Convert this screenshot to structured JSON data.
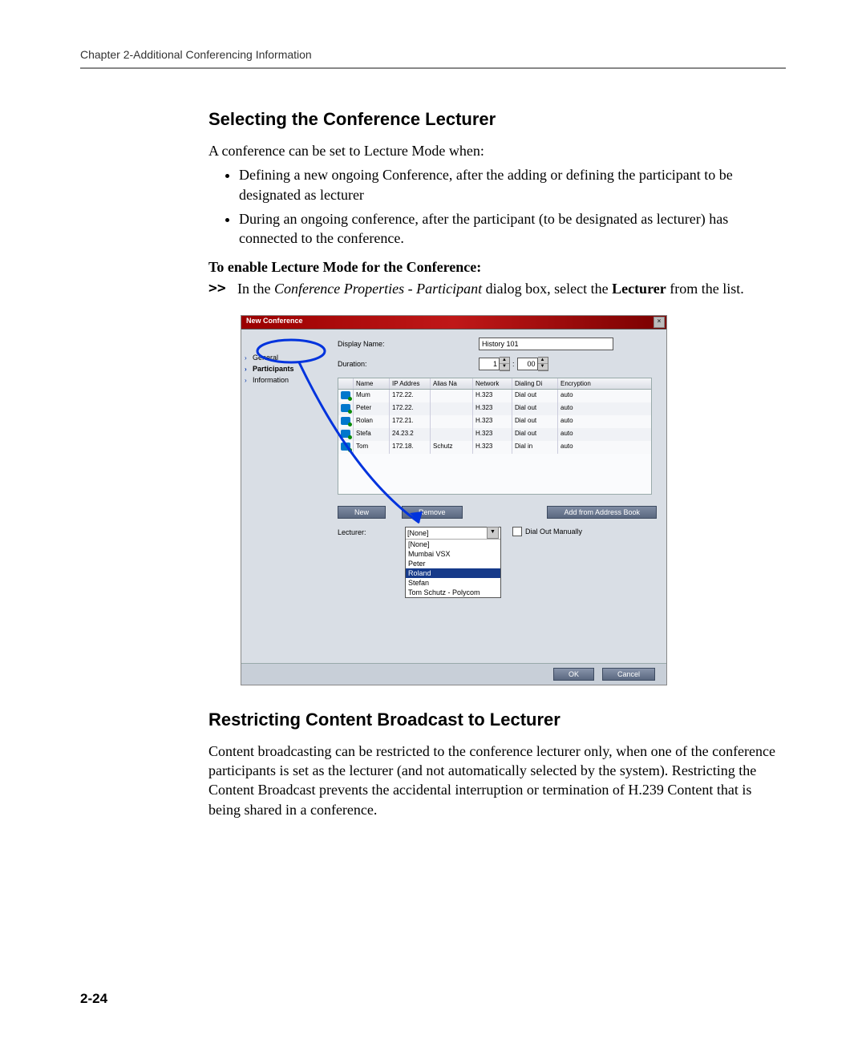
{
  "chapter_header": "Chapter 2-Additional Conferencing Information",
  "section1": {
    "title": "Selecting the Conference Lecturer",
    "intro": "A conference can be set to Lecture Mode when:",
    "bullets": [
      "Defining a new ongoing Conference, after the adding or defining the participant to be designated as lecturer",
      "During an ongoing conference, after the participant (to be designated as lecturer) has connected to the conference."
    ],
    "enable_heading": "To enable Lecture Mode for the Conference:",
    "step_marker": ">>",
    "step_prefix": "In the ",
    "step_italic": "Conference Properties - Participant",
    "step_mid": " dialog box, select the ",
    "step_bold": "Lecturer",
    "step_suffix": " from the list."
  },
  "screenshot": {
    "title": "New Conference",
    "close_x": "×",
    "sidebar": {
      "items": [
        {
          "label": "General",
          "active": false
        },
        {
          "label": "Participants",
          "active": true
        },
        {
          "label": "Information",
          "active": false
        }
      ]
    },
    "labels": {
      "display_name": "Display Name:",
      "duration": "Duration:",
      "lecturer": "Lecturer:",
      "dial_out": "Dial Out Manually"
    },
    "display_name_value": "History 101",
    "duration_hours": "1",
    "duration_sep": ":",
    "duration_mins": "00",
    "table": {
      "headers": [
        "",
        "Name",
        "IP Addres",
        "Alias Na",
        "Network",
        "Dialing Di",
        "Encryption"
      ],
      "rows": [
        {
          "name": "Mum",
          "ip": "172.22.",
          "alias": "",
          "net": "H.323",
          "dial": "Dial out",
          "enc": "auto"
        },
        {
          "name": "Peter",
          "ip": "172.22.",
          "alias": "",
          "net": "H.323",
          "dial": "Dial out",
          "enc": "auto"
        },
        {
          "name": "Rolan",
          "ip": "172.21.",
          "alias": "",
          "net": "H.323",
          "dial": "Dial out",
          "enc": "auto"
        },
        {
          "name": "Stefa",
          "ip": "24.23.2",
          "alias": "",
          "net": "H.323",
          "dial": "Dial out",
          "enc": "auto"
        },
        {
          "name": "Tom",
          "ip": "172.18.",
          "alias": "Schutz",
          "net": "H.323",
          "dial": "Dial in",
          "enc": "auto"
        }
      ]
    },
    "buttons": {
      "new": "New",
      "remove": "Remove",
      "add_book": "Add from Address Book",
      "ok": "OK",
      "cancel": "Cancel"
    },
    "dropdown": {
      "selected": "[None]",
      "options": [
        "[None]",
        "Mumbai VSX",
        "Peter",
        "Roland",
        "Stefan",
        "Tom Schutz - Polycom"
      ],
      "highlight_index": 3
    },
    "annotation": {
      "ellipse_color": "#0033dd",
      "arrow_color": "#0033dd"
    }
  },
  "section2": {
    "title": "Restricting Content Broadcast to Lecturer",
    "para": "Content broadcasting can be restricted to the conference lecturer only, when one of the conference participants is set as the lecturer (and not automatically selected by the system). Restricting the Content Broadcast prevents the accidental interruption or termination of H.239 Content that is being shared in a conference."
  },
  "page_number": "2-24",
  "colors": {
    "rule": "#888888",
    "titlebar_start": "#9a0000",
    "titlebar_end": "#7a0000",
    "panel_bg": "#d9dee5",
    "btn_bg_top": "#7f8ca3",
    "btn_bg_bot": "#5a6880",
    "highlight": "#163a8a"
  }
}
